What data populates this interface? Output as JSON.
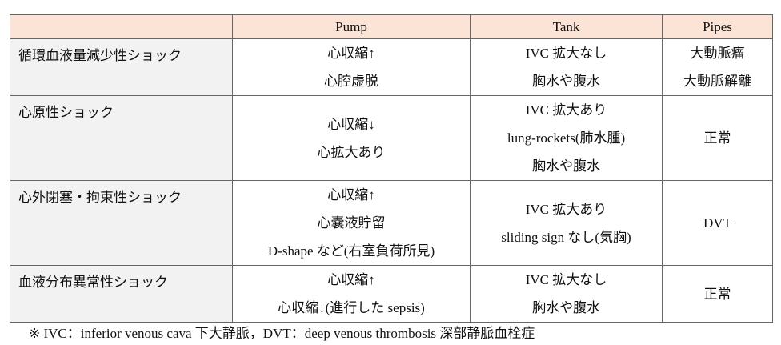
{
  "table": {
    "columns": [
      "Pump",
      "Tank",
      "Pipes"
    ],
    "rows": [
      {
        "label": "循環血液量減少性ショック",
        "cells": [
          [
            "心収縮↑",
            "心腔虚脱"
          ],
          [
            "IVC 拡大なし",
            "胸水や腹水"
          ],
          [
            "大動脈瘤",
            "大動脈解離"
          ]
        ]
      },
      {
        "label": "心原性ショック",
        "cells": [
          [
            "心収縮↓",
            "心拡大あり"
          ],
          [
            "IVC 拡大あり",
            "lung-rockets(肺水腫)",
            "胸水や腹水"
          ],
          [
            "正常"
          ]
        ]
      },
      {
        "label": "心外閉塞・拘束性ショック",
        "cells": [
          [
            "心収縮↑",
            "心嚢液貯留",
            "D-shape など(右室負荷所見)"
          ],
          [
            "IVC 拡大あり",
            "sliding sign なし(気胸)"
          ],
          [
            "DVT"
          ]
        ]
      },
      {
        "label": "血液分布異常性ショック",
        "cells": [
          [
            "心収縮↑",
            "心収縮↓(進行した sepsis)"
          ],
          [
            "IVC 拡大なし",
            "胸水や腹水"
          ],
          [
            "正常"
          ]
        ]
      }
    ]
  },
  "footnote": "※ IVC：inferior venous cava 下大静脈，DVT：deep venous thrombosis 深部静脈血栓症"
}
